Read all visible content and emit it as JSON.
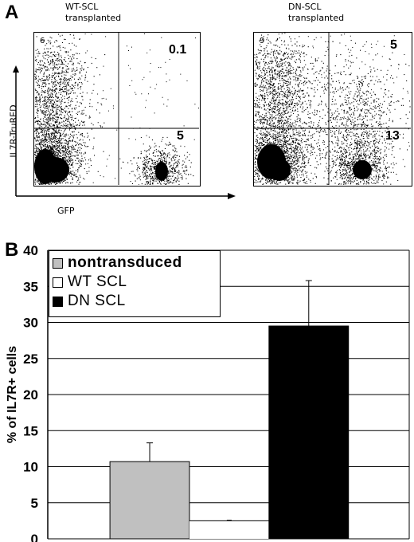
{
  "panel_a": {
    "letter": "A",
    "plots": [
      {
        "title_line1": "WT-SCL",
        "title_line2": "transplanted",
        "upper_left": "6",
        "upper_right": "0.1",
        "lower_right": "5"
      },
      {
        "title_line1": "DN-SCL",
        "title_line2": "transplanted",
        "upper_left": "9",
        "upper_right": "5",
        "lower_right": "13"
      }
    ],
    "y_axis_label": "IL7R-TruRED",
    "x_axis_label": "GFP"
  },
  "panel_b": {
    "letter": "B"
  },
  "chart_data": {
    "type": "bar",
    "categories": [
      "nontransduced",
      "WT SCL",
      "DN SCL"
    ],
    "values": [
      10.7,
      2.5,
      29.5
    ],
    "errors": [
      2.6,
      0.05,
      6.3
    ],
    "colors": [
      "#c0c0c0",
      "#ffffff",
      "#000000"
    ],
    "ylabel": "% of IL7R+ cells",
    "xlabel": "",
    "ylim": [
      0,
      40
    ],
    "yticks": [
      "0",
      "5",
      "10",
      "15",
      "20",
      "25",
      "30",
      "35",
      "40"
    ],
    "grid": true,
    "legend": {
      "position": "top-left",
      "entries": [
        {
          "label": "nontransduced",
          "color": "#c0c0c0"
        },
        {
          "label": "WT SCL",
          "color": "#ffffff"
        },
        {
          "label": "DN SCL",
          "color": "#000000"
        }
      ]
    }
  }
}
